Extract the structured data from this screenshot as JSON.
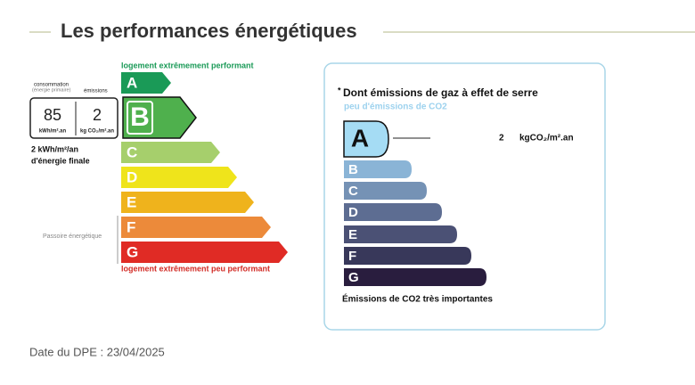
{
  "header": {
    "title": "Les performances énergétiques"
  },
  "energy": {
    "top_label": "logement extrêmement performant",
    "bottom_label": "logement extrêmement peu performant",
    "consumption_label": "consommation",
    "consumption_sub": "(énergie primaire)",
    "emissions_label": "émissions",
    "consumption_value": 85,
    "consumption_unit": "kWh/m².an",
    "emissions_value": 2,
    "emissions_unit": "kg CO₂/m².an",
    "final_energy_line1": "2 kWh/m²/an",
    "final_energy_line2": "d'énergie finale",
    "passoire": "Passoire énergétique",
    "current_class": "B",
    "classes": [
      {
        "letter": "A",
        "color": "#1a9a57"
      },
      {
        "letter": "B",
        "color": "#4fb04d"
      },
      {
        "letter": "C",
        "color": "#a6cf6c"
      },
      {
        "letter": "D",
        "color": "#efe41b"
      },
      {
        "letter": "E",
        "color": "#efb31c"
      },
      {
        "letter": "F",
        "color": "#ec8a3a"
      },
      {
        "letter": "G",
        "color": "#e02b25"
      }
    ]
  },
  "ges": {
    "asterisk": "*",
    "title": "Dont émissions de gaz à effet de serre",
    "top_label": "peu d'émissions de CO2",
    "bottom_label": "Émissions de CO2 très importantes",
    "value": 2,
    "unit": "kgCO₂/m².an",
    "current_class": "A",
    "classes": [
      {
        "letter": "A",
        "color": "#a5dcf4"
      },
      {
        "letter": "B",
        "color": "#8ab4d6"
      },
      {
        "letter": "C",
        "color": "#7592b5"
      },
      {
        "letter": "D",
        "color": "#5d6d92"
      },
      {
        "letter": "E",
        "color": "#4b5175"
      },
      {
        "letter": "F",
        "color": "#38385a"
      },
      {
        "letter": "G",
        "color": "#291d3e"
      }
    ]
  },
  "footer": {
    "date": "Date du DPE : 23/04/2025"
  }
}
